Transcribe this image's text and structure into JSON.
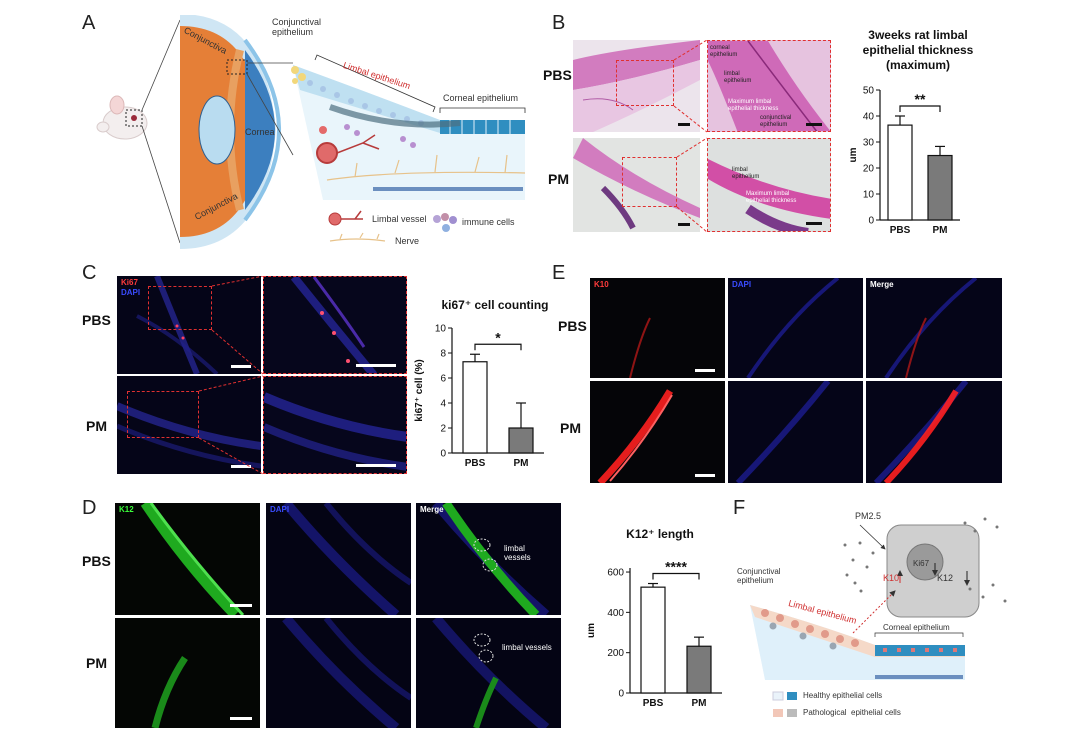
{
  "panels": {
    "A": {
      "label": "A",
      "conjunctiva_top": "Conjunctiva",
      "conjunctiva_bottom": "Conjunctiva",
      "cornea": "Cornea",
      "conjunctival_epithelium": "Conjunctival\nepithelium",
      "limbal_epithelium": "Limbal epithelium",
      "corneal_epithelium": "Corneal epithelium",
      "legend_vessel": "Limbal vessel",
      "legend_immune": "immune cells",
      "legend_nerve": "Nerve"
    },
    "B": {
      "label": "B",
      "row_pbs": "PBS",
      "row_pm": "PM",
      "ann_corneal": "corneal\nepithelium",
      "ann_limbal": "limbal\nepithelium",
      "ann_max": "Maximum limbal\nepithelial thickness",
      "ann_conj": "conjunctival\nepithelium",
      "ann_limbal2": "limbal\nepithelium",
      "ann_max2": "Maximum limbal\nepithelial thickness"
    },
    "C": {
      "label": "C",
      "row_pbs": "PBS",
      "row_pm": "PM",
      "chan1": "Ki67",
      "chan2": "DAPI"
    },
    "D": {
      "label": "D",
      "row_pbs": "PBS",
      "row_pm": "PM",
      "chan_k12": "K12",
      "chan_dapi": "DAPI",
      "chan_merge": "Merge",
      "vessels1": "limbal\nvessels",
      "vessels2": "limbal vessels"
    },
    "E": {
      "label": "E",
      "row_pbs": "PBS",
      "row_pm": "PM",
      "chan_k10": "K10",
      "chan_dapi": "DAPI",
      "chan_merge": "Merge"
    },
    "F": {
      "label": "F",
      "pm25": "PM2.5",
      "ki67": "Ki67",
      "k10": "K10",
      "k12": "K12",
      "conj_epi": "Conjunctival\nepithelium",
      "limbal_epi": "Limbal epithelium",
      "corneal_epi": "Corneal epithelium",
      "legend_healthy": "Healthy epithelial cells",
      "legend_patho": "Pathological  epithelial cells"
    }
  },
  "chart_data": [
    {
      "id": "B-chart",
      "type": "bar",
      "title": "3weeks rat limbal\nepithelial thickness\n(maximum)",
      "categories": [
        "PBS",
        "PM"
      ],
      "values": [
        36.5,
        24.8
      ],
      "errors": [
        3.5,
        3.5
      ],
      "ylabel": "um",
      "ylim": [
        0,
        50
      ],
      "yticks": [
        0,
        10,
        20,
        30,
        40,
        50
      ],
      "significance": "**",
      "bar_colors": [
        "#ffffff",
        "#7a7a7a"
      ]
    },
    {
      "id": "C-chart",
      "type": "bar",
      "title": "ki67⁺ cell counting",
      "categories": [
        "PBS",
        "PM"
      ],
      "values": [
        7.3,
        2.0
      ],
      "errors": [
        0.6,
        2.0
      ],
      "ylabel": "ki67⁺ cell (%)",
      "ylim": [
        0,
        10
      ],
      "yticks": [
        0,
        2,
        4,
        6,
        8,
        10
      ],
      "significance": "*",
      "bar_colors": [
        "#ffffff",
        "#7a7a7a"
      ]
    },
    {
      "id": "D-chart",
      "type": "bar",
      "title": "K12⁺ length",
      "categories": [
        "PBS",
        "PM"
      ],
      "values": [
        525,
        232
      ],
      "errors": [
        18,
        45
      ],
      "ylabel": "um",
      "ylim": [
        0,
        620
      ],
      "yticks": [
        0,
        200,
        400,
        600
      ],
      "significance": "****",
      "bar_colors": [
        "#ffffff",
        "#7a7a7a"
      ]
    }
  ]
}
